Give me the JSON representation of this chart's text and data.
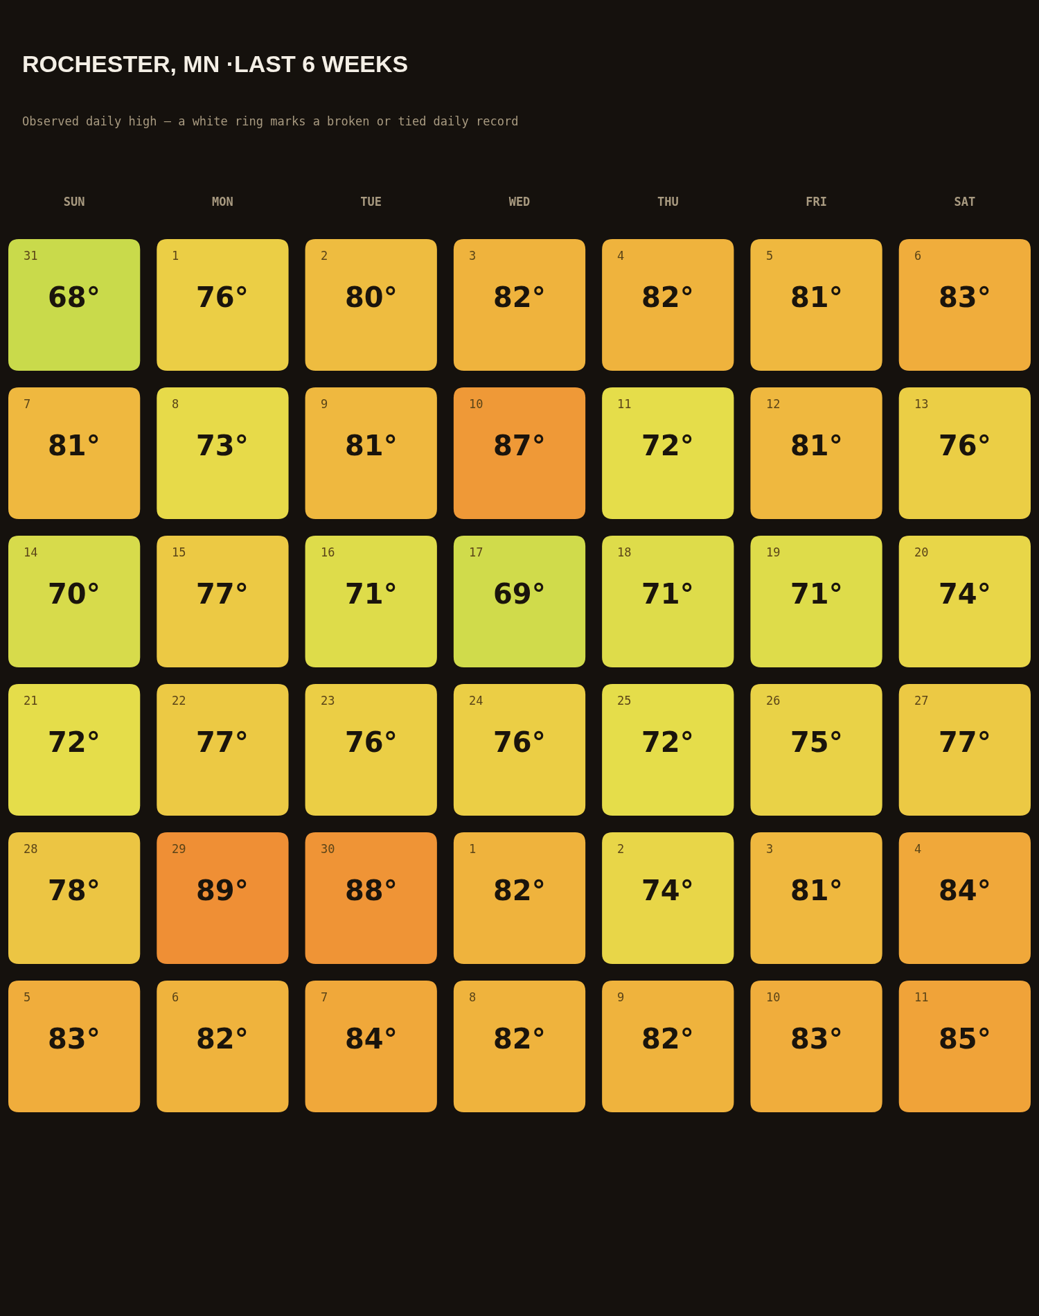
{
  "chart_data": {
    "type": "heatmap",
    "title": "ROCHESTER, MN ·LAST 6 WEEKS",
    "subtitle": "Observed daily high — a white ring marks a broken or tied daily record",
    "categories": [
      "SUN",
      "MON",
      "TUE",
      "WED",
      "THU",
      "FRI",
      "SAT"
    ],
    "y_categories": [
      null,
      null,
      null,
      null,
      null,
      null
    ],
    "cells": [
      [
        68,
        76,
        80,
        82,
        82,
        81,
        83
      ],
      [
        81,
        73,
        81,
        87,
        72,
        81,
        76
      ],
      [
        70,
        77,
        71,
        69,
        71,
        71,
        74
      ],
      [
        72,
        77,
        76,
        76,
        72,
        75,
        77
      ],
      [
        78,
        89,
        88,
        82,
        74,
        81,
        84
      ],
      [
        83,
        82,
        84,
        82,
        82,
        83,
        85
      ]
    ],
    "cell_labels": [
      [
        "68°",
        "76°",
        "80°",
        "82°",
        "82°",
        "81°",
        "83°"
      ],
      [
        "81°",
        "73°",
        "81°",
        "87°",
        "72°",
        "81°",
        "76°"
      ],
      [
        "70°",
        "77°",
        "71°",
        "69°",
        "71°",
        "71°",
        "74°"
      ],
      [
        "72°",
        "77°",
        "76°",
        "76°",
        "72°",
        "75°",
        "77°"
      ],
      [
        "78°",
        "89°",
        "88°",
        "82°",
        "74°",
        "81°",
        "84°"
      ],
      [
        "83°",
        "82°",
        "84°",
        "82°",
        "82°",
        "83°",
        "85°"
      ]
    ],
    "annotations": [
      "31",
      "1",
      "2",
      "3",
      "4",
      "5",
      "6",
      "7",
      "8",
      "9",
      "10",
      "11",
      "12",
      "13",
      "14",
      "15",
      "16",
      "17",
      "18",
      "19",
      "20",
      "21",
      "22",
      "23",
      "24",
      "25",
      "26",
      "27",
      "28",
      "29",
      "30",
      "1",
      "2",
      "3",
      "4",
      "5",
      "6",
      "7",
      "8",
      "9",
      "10",
      "11"
    ]
  }
}
